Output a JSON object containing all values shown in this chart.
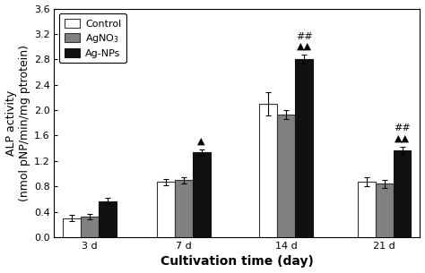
{
  "groups": [
    "3 d",
    "7 d",
    "14 d",
    "21 d"
  ],
  "series": {
    "Control": {
      "values": [
        0.3,
        0.87,
        2.1,
        0.87
      ],
      "errors": [
        0.05,
        0.05,
        0.18,
        0.07
      ],
      "color": "#ffffff",
      "edgecolor": "#333333"
    },
    "AgNO3": {
      "values": [
        0.32,
        0.9,
        1.93,
        0.84
      ],
      "errors": [
        0.04,
        0.05,
        0.07,
        0.06
      ],
      "color": "#808080",
      "edgecolor": "#333333"
    },
    "Ag-NPs": {
      "values": [
        0.57,
        1.34,
        2.8,
        1.37
      ],
      "errors": [
        0.05,
        0.04,
        0.07,
        0.06
      ],
      "color": "#111111",
      "edgecolor": "#111111"
    }
  },
  "ylabel": "ALP activity\n(nmol pNP/min/mg ptrotein)",
  "xlabel": "Cultivation time (day)",
  "ylim": [
    0,
    3.6
  ],
  "yticks": [
    0.0,
    0.4,
    0.8,
    1.2,
    1.6,
    2.0,
    2.4,
    2.8,
    3.2,
    3.6
  ],
  "legend_labels": [
    "Control",
    "AgNO$_3$",
    "Ag-NPs"
  ],
  "bar_width": 0.2,
  "background_color": "#ffffff",
  "axis_fontsize": 9,
  "tick_fontsize": 8,
  "legend_fontsize": 8,
  "xlabel_fontsize": 10,
  "x_positions": [
    0.45,
    1.5,
    2.65,
    3.75
  ]
}
